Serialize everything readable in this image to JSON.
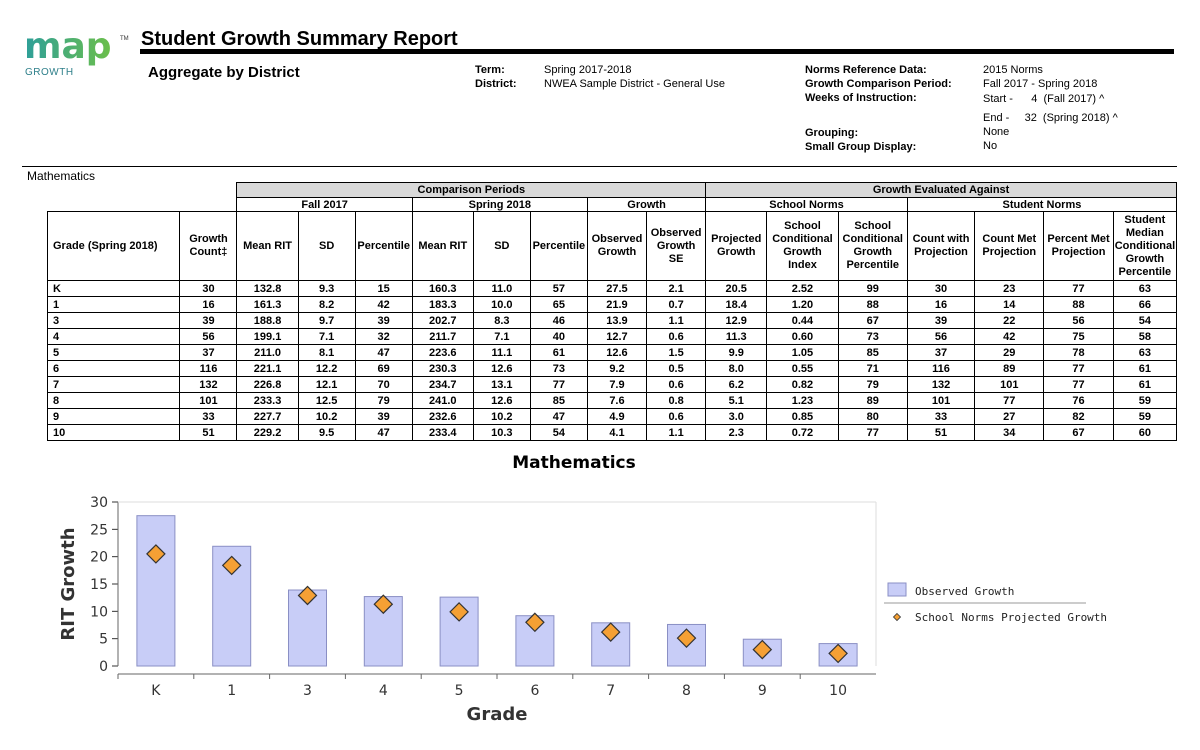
{
  "logo": {
    "wordmark": "map",
    "tm": "TM",
    "sub": "GROWTH",
    "colors": [
      "#2e9f9a",
      "#6cbf4a"
    ]
  },
  "header": {
    "title": "Student Growth Summary Report",
    "subtitle": "Aggregate by District",
    "term_label": "Term:",
    "term_value": "Spring 2017-2018",
    "district_label": "District:",
    "district_value": "NWEA Sample District - General Use",
    "norms_label": "Norms Reference Data:",
    "norms_value": "2015 Norms",
    "period_label": "Growth Comparison Period:",
    "period_value": "Fall 2017 - Spring 2018",
    "weeks_label": "Weeks of Instruction:",
    "weeks_start": "Start -      4  (Fall 2017) ^",
    "weeks_end": "End -     32  (Spring 2018) ^",
    "grouping_label": "Grouping:",
    "grouping_value": "None",
    "small_group_label": "Small Group Display:",
    "small_group_value": "No"
  },
  "subject": "Mathematics",
  "table": {
    "band1": "Comparison Periods",
    "band2": "Growth Evaluated Against",
    "sub": [
      "Fall 2017",
      "Spring 2018",
      "Growth",
      "School Norms",
      "Student Norms"
    ],
    "columns": [
      "Grade  (Spring 2018)",
      "Growth Count‡",
      "Mean RIT",
      "SD",
      "Percentile",
      "Mean RIT",
      "SD",
      "Percentile",
      "Observed Growth",
      "Observed Growth SE",
      "Projected Growth",
      "School Conditional Growth Index",
      "School Conditional Growth Percentile",
      "Count with Projection",
      "Count Met Projection",
      "Percent Met Projection",
      "Student Median Conditional Growth Percentile"
    ],
    "rows": [
      [
        "K",
        "30",
        "132.8",
        "9.3",
        "15",
        "160.3",
        "11.0",
        "57",
        "27.5",
        "2.1",
        "20.5",
        "2.52",
        "99",
        "30",
        "23",
        "77",
        "63"
      ],
      [
        "1",
        "16",
        "161.3",
        "8.2",
        "42",
        "183.3",
        "10.0",
        "65",
        "21.9",
        "0.7",
        "18.4",
        "1.20",
        "88",
        "16",
        "14",
        "88",
        "66"
      ],
      [
        "3",
        "39",
        "188.8",
        "9.7",
        "39",
        "202.7",
        "8.3",
        "46",
        "13.9",
        "1.1",
        "12.9",
        "0.44",
        "67",
        "39",
        "22",
        "56",
        "54"
      ],
      [
        "4",
        "56",
        "199.1",
        "7.1",
        "32",
        "211.7",
        "7.1",
        "40",
        "12.7",
        "0.6",
        "11.3",
        "0.60",
        "73",
        "56",
        "42",
        "75",
        "58"
      ],
      [
        "5",
        "37",
        "211.0",
        "8.1",
        "47",
        "223.6",
        "11.1",
        "61",
        "12.6",
        "1.5",
        "9.9",
        "1.05",
        "85",
        "37",
        "29",
        "78",
        "63"
      ],
      [
        "6",
        "116",
        "221.1",
        "12.2",
        "69",
        "230.3",
        "12.6",
        "73",
        "9.2",
        "0.5",
        "8.0",
        "0.55",
        "71",
        "116",
        "89",
        "77",
        "61"
      ],
      [
        "7",
        "132",
        "226.8",
        "12.1",
        "70",
        "234.7",
        "13.1",
        "77",
        "7.9",
        "0.6",
        "6.2",
        "0.82",
        "79",
        "132",
        "101",
        "77",
        "61"
      ],
      [
        "8",
        "101",
        "233.3",
        "12.5",
        "79",
        "241.0",
        "12.6",
        "85",
        "7.6",
        "0.8",
        "5.1",
        "1.23",
        "89",
        "101",
        "77",
        "76",
        "59"
      ],
      [
        "9",
        "33",
        "227.7",
        "10.2",
        "39",
        "232.6",
        "10.2",
        "47",
        "4.9",
        "0.6",
        "3.0",
        "0.85",
        "80",
        "33",
        "27",
        "82",
        "59"
      ],
      [
        "10",
        "51",
        "229.2",
        "9.5",
        "47",
        "233.4",
        "10.3",
        "54",
        "4.1",
        "1.1",
        "2.3",
        "0.72",
        "77",
        "51",
        "34",
        "67",
        "60"
      ]
    ]
  },
  "chart_data": {
    "type": "bar",
    "title": "Mathematics",
    "xlabel": "Grade",
    "ylabel": "RIT Growth",
    "categories": [
      "K",
      "1",
      "3",
      "4",
      "5",
      "6",
      "7",
      "8",
      "9",
      "10"
    ],
    "ylim": [
      0,
      30
    ],
    "yticks": [
      0,
      5,
      10,
      15,
      20,
      25,
      30
    ],
    "legend_position": "right",
    "series": [
      {
        "name": "Observed Growth",
        "kind": "bar",
        "color": "#c8cdf7",
        "values": [
          27.5,
          21.9,
          13.9,
          12.7,
          12.6,
          9.2,
          7.9,
          7.6,
          4.9,
          4.1
        ]
      },
      {
        "name": "School Norms Projected Growth",
        "kind": "marker",
        "color": "#f5a034",
        "values": [
          20.5,
          18.4,
          12.9,
          11.3,
          9.9,
          8.0,
          6.2,
          5.1,
          3.0,
          2.3
        ]
      }
    ]
  }
}
